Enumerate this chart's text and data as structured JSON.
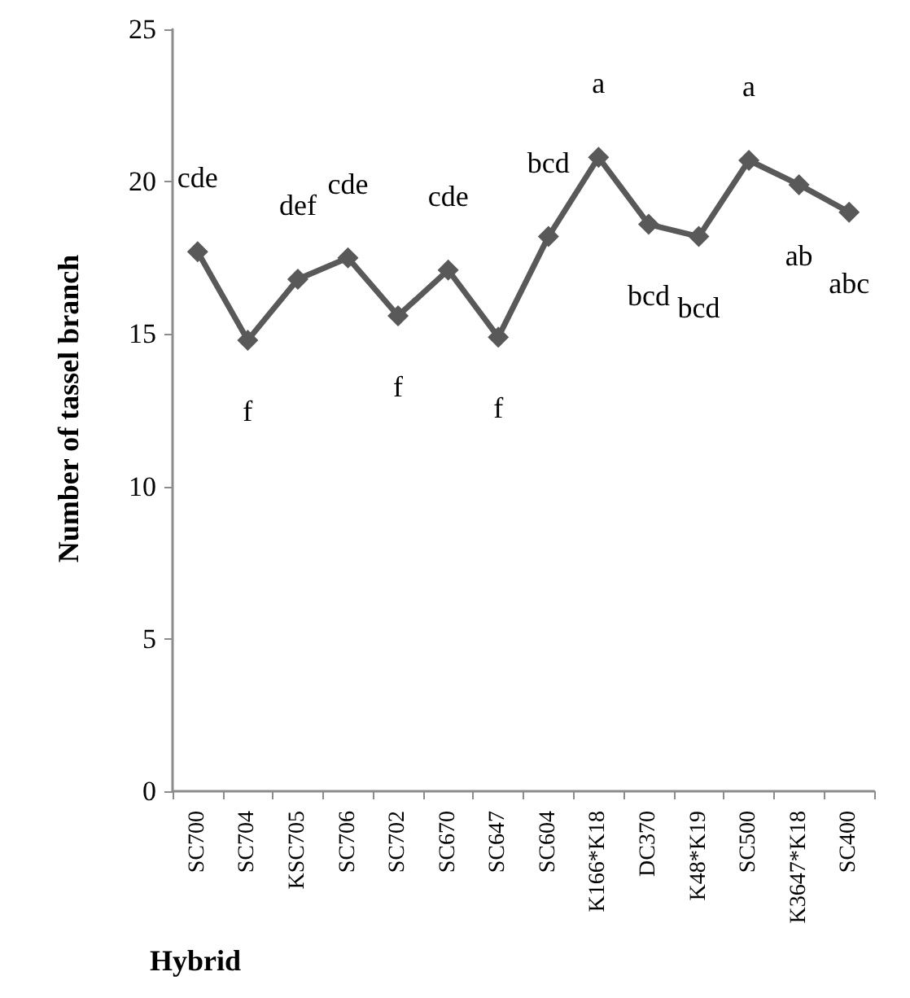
{
  "chart_data": {
    "type": "line",
    "xlabel": "Hybrid",
    "ylabel": "Number of tassel branch",
    "categories": [
      "SC700",
      "SC704",
      "KSC705",
      "SC706",
      "SC702",
      "SC670",
      "SC647",
      "SC604",
      "K166*K18",
      "DC370",
      "K48*K19",
      "SC500",
      "K3647*K18",
      "SC400"
    ],
    "series": [
      {
        "color": "#595959",
        "values": [
          17.7,
          14.8,
          16.8,
          17.5,
          15.6,
          17.1,
          14.9,
          18.2,
          20.8,
          18.6,
          18.2,
          20.7,
          19.9,
          19.0
        ],
        "value_labels": [
          "cde",
          "f",
          "def",
          "cde",
          "f",
          "cde",
          "f",
          "bcd",
          "a",
          "bcd",
          "bcd",
          "a",
          "ab",
          "abc"
        ]
      }
    ],
    "ylim": [
      0,
      25
    ],
    "yticks": [
      0,
      5,
      10,
      15,
      20,
      25
    ],
    "grid": false,
    "marker": "diamond",
    "line_style": "solid"
  }
}
